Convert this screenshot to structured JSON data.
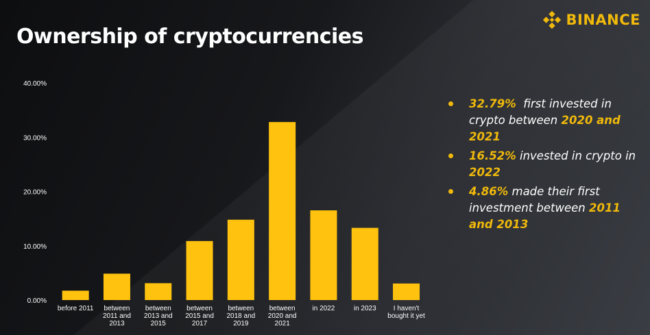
{
  "header": {
    "title": "Ownership of cryptocurrencies",
    "brand_name": "BINANCE",
    "brand_icon": "binance-diamond-logo",
    "brand_color": "#F0B90B"
  },
  "chart_data": {
    "type": "bar",
    "categories": [
      [
        "before 2011"
      ],
      [
        "between",
        "2011 and",
        "2013"
      ],
      [
        "between",
        "2013 and",
        "2015"
      ],
      [
        "between",
        "2015 and",
        "2017"
      ],
      [
        "between",
        "2018 and",
        "2019"
      ],
      [
        "between",
        "2020 and",
        "2021"
      ],
      [
        "in 2022"
      ],
      [
        "in 2023"
      ],
      [
        "I haven't",
        "bought it yet"
      ]
    ],
    "values": [
      1.73,
      4.86,
      3.11,
      10.87,
      14.8,
      32.79,
      16.52,
      13.3,
      3.05
    ],
    "ylim": [
      0,
      40
    ],
    "yticks": [
      "0.00%",
      "10.00%",
      "20.00%",
      "30.00%",
      "40.00%"
    ],
    "ytick_values": [
      0,
      10,
      20,
      30,
      40
    ],
    "bar_color": "#FFC20E",
    "grid": false,
    "title": "",
    "xlabel": "",
    "ylabel": ""
  },
  "notes": [
    [
      {
        "text": "32.79%",
        "hl": true
      },
      {
        "text": "  first invested in crypto between ",
        "hl": false
      },
      {
        "text": "2020 and 2021",
        "hl": true
      }
    ],
    [
      {
        "text": "16.52%",
        "hl": true
      },
      {
        "text": " invested in crypto in ",
        "hl": false
      },
      {
        "text": "2022",
        "hl": true
      }
    ],
    [
      {
        "text": "4.86%",
        "hl": true
      },
      {
        "text": " made their first investment between ",
        "hl": false
      },
      {
        "text": "2011 and 2013",
        "hl": true
      }
    ]
  ]
}
